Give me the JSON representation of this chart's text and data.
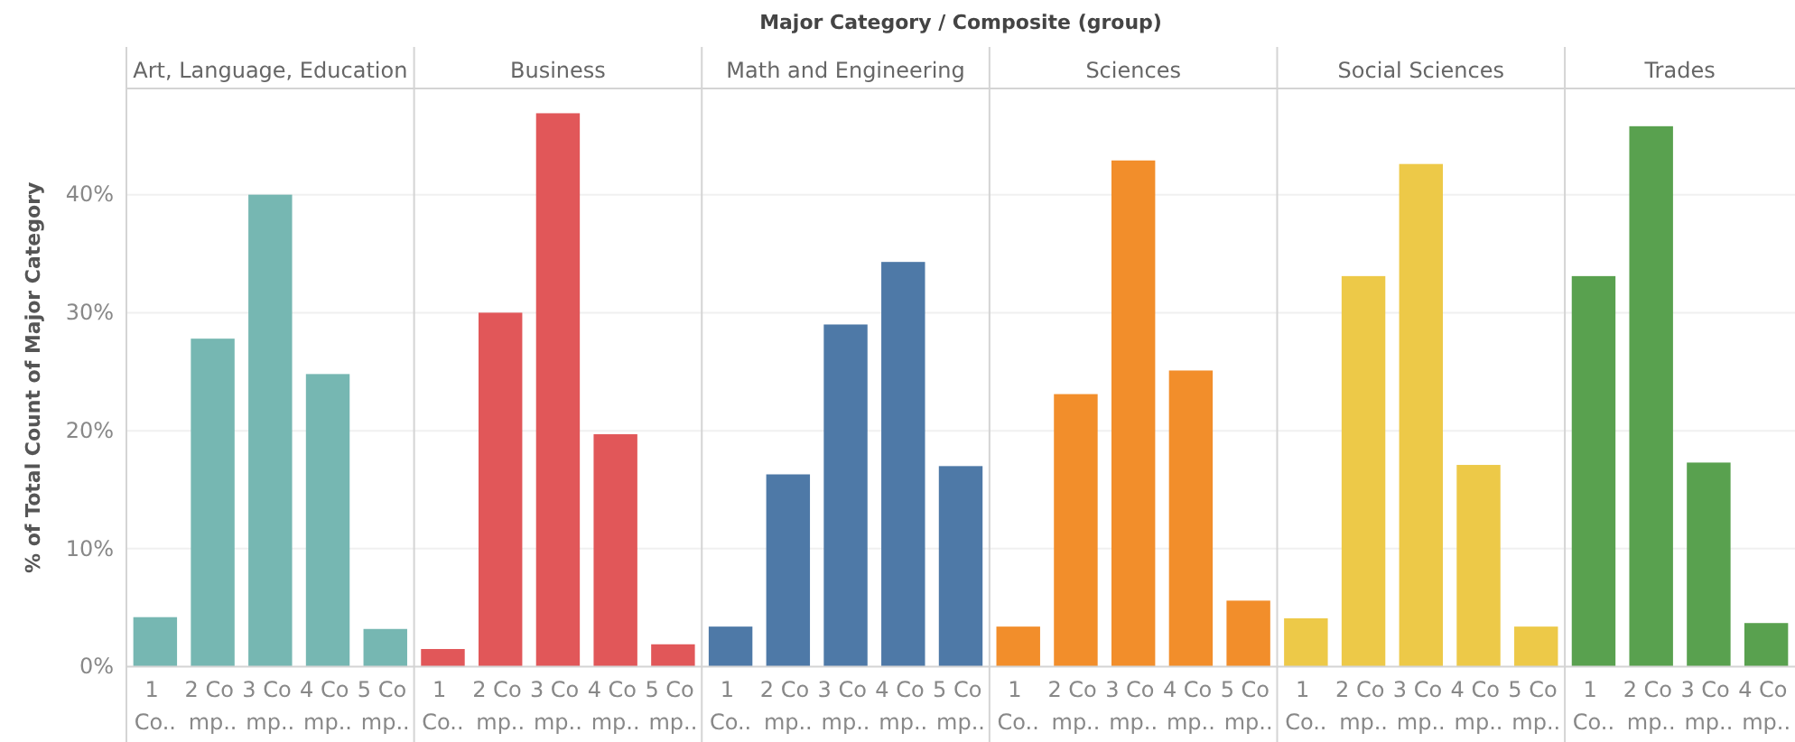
{
  "chart_data": [
    {
      "type": "bar",
      "title": "Art, Language, Education",
      "annotations": [
        "Major Category / Composite (group)"
      ],
      "ylabel": "% of Total Count of Major Category",
      "categories": [
        "1 Co..",
        "2 Co mp..",
        "3 Co mp..",
        "4 Co mp..",
        "5 Co mp.."
      ],
      "values": [
        4.2,
        27.8,
        40.0,
        24.8,
        3.2
      ],
      "color": "#76b7b2",
      "ylim": [
        0,
        49
      ],
      "yticks": [
        {
          "value": 0,
          "label": "0%"
        },
        {
          "value": 10,
          "label": "10%"
        },
        {
          "value": 20,
          "label": "20%"
        },
        {
          "value": 30,
          "label": "30%"
        },
        {
          "value": 40,
          "label": "40%"
        }
      ],
      "grid": "y"
    },
    {
      "type": "bar",
      "title": "Business",
      "categories": [
        "1 Co..",
        "2 Co mp..",
        "3 Co mp..",
        "4 Co mp..",
        "5 Co mp.."
      ],
      "values": [
        1.5,
        30.0,
        46.9,
        19.7,
        1.9
      ],
      "color": "#e15759",
      "ylim": [
        0,
        49
      ],
      "yticks": [
        0,
        10,
        20,
        30,
        40
      ],
      "grid": "y",
      "tick_labels": "x"
    },
    {
      "type": "bar",
      "title": "Math and Engineering",
      "categories": [
        "1 Co..",
        "2 Co mp..",
        "3 Co mp..",
        "4 Co mp..",
        "5 Co mp.."
      ],
      "values": [
        3.4,
        16.3,
        29.0,
        34.3,
        17.0
      ],
      "color": "#4e79a7",
      "ylim": [
        0,
        49
      ],
      "yticks": [
        0,
        10,
        20,
        30,
        40
      ],
      "grid": "y",
      "tick_labels": "x"
    },
    {
      "type": "bar",
      "title": "Sciences",
      "categories": [
        "1 Co..",
        "2 Co mp..",
        "3 Co mp..",
        "4 Co mp..",
        "5 Co mp.."
      ],
      "values": [
        3.4,
        23.1,
        42.9,
        25.1,
        5.6
      ],
      "color": "#f28e2b",
      "ylim": [
        0,
        49
      ],
      "yticks": [
        0,
        10,
        20,
        30,
        40
      ],
      "grid": "y",
      "tick_labels": "x"
    },
    {
      "type": "bar",
      "title": "Social Sciences",
      "categories": [
        "1 Co..",
        "2 Co mp..",
        "3 Co mp..",
        "4 Co mp..",
        "5 Co mp.."
      ],
      "values": [
        4.1,
        33.1,
        42.6,
        17.1,
        3.4
      ],
      "color": "#edc948",
      "ylim": [
        0,
        49
      ],
      "yticks": [
        0,
        10,
        20,
        30,
        40
      ],
      "grid": "y",
      "tick_labels": "x"
    },
    {
      "type": "bar",
      "title": "Trades",
      "categories": [
        "1 Co..",
        "2 Co mp..",
        "3 Co mp..",
        "4 Co mp.."
      ],
      "values": [
        33.1,
        45.8,
        17.3,
        3.7
      ],
      "color": "#59a14f",
      "ylim": [
        0,
        49
      ],
      "yticks": [
        0,
        10,
        20,
        30,
        40
      ],
      "grid": "y",
      "tick_labels": "x"
    }
  ]
}
